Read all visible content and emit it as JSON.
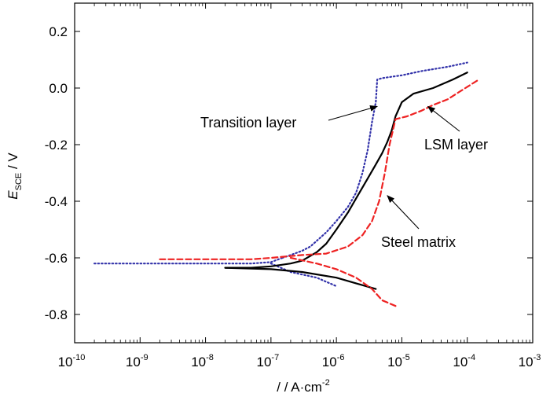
{
  "chart_data": {
    "type": "line",
    "x_scale": "log",
    "xlim": [
      1e-10,
      0.001
    ],
    "ylim": [
      -0.9,
      0.3
    ],
    "x_ticks": [
      {
        "base": "10",
        "exp": "-10"
      },
      {
        "base": "10",
        "exp": "-9"
      },
      {
        "base": "10",
        "exp": "-8"
      },
      {
        "base": "10",
        "exp": "-7"
      },
      {
        "base": "10",
        "exp": "-6"
      },
      {
        "base": "10",
        "exp": "-5"
      },
      {
        "base": "10",
        "exp": "-4"
      },
      {
        "base": "10",
        "exp": "-3"
      }
    ],
    "y_ticks": [
      "0.2",
      "0.0",
      "-0.2",
      "-0.4",
      "-0.6",
      "-0.8"
    ],
    "xlabel": {
      "main": "/ / A·cm",
      "sup": "-2"
    },
    "ylabel": {
      "main": "E",
      "sub": "SCE",
      "rest": " / V"
    },
    "grid": false,
    "series": [
      {
        "name": "Transition layer",
        "color": "#3333aa",
        "style": "dotted",
        "points": [
          [
            1.5e-07,
            -0.6
          ],
          [
            2e-07,
            -0.59
          ],
          [
            3e-07,
            -0.575
          ],
          [
            4e-07,
            -0.56
          ],
          [
            5e-07,
            -0.54
          ],
          [
            7e-07,
            -0.51
          ],
          [
            1e-06,
            -0.47
          ],
          [
            1.5e-06,
            -0.42
          ],
          [
            2e-06,
            -0.37
          ],
          [
            2.5e-06,
            -0.3
          ],
          [
            3e-06,
            -0.22
          ],
          [
            3.5e-06,
            -0.12
          ],
          [
            4e-06,
            -0.05
          ],
          [
            4.2e-06,
            0.03
          ],
          [
            5e-06,
            0.035
          ],
          [
            7e-06,
            0.04
          ],
          [
            1e-05,
            0.045
          ],
          [
            2e-05,
            0.06
          ],
          [
            5e-05,
            0.075
          ],
          [
            0.0001,
            0.09
          ]
        ],
        "cathodic": [
          [
            2e-10,
            -0.62
          ],
          [
            1e-09,
            -0.62
          ],
          [
            1e-08,
            -0.62
          ],
          [
            5e-08,
            -0.62
          ],
          [
            1e-07,
            -0.615
          ],
          [
            1.5e-07,
            -0.6
          ]
        ],
        "cathodic_low": [
          [
            1e-07,
            -0.62
          ],
          [
            2e-07,
            -0.65
          ],
          [
            5e-07,
            -0.67
          ],
          [
            1e-06,
            -0.7
          ]
        ]
      },
      {
        "name": "Steel matrix",
        "color": "#000000",
        "style": "solid",
        "points": [
          [
            2e-08,
            -0.635
          ],
          [
            5e-08,
            -0.635
          ],
          [
            1e-07,
            -0.63
          ],
          [
            2e-07,
            -0.62
          ],
          [
            3e-07,
            -0.61
          ],
          [
            5e-07,
            -0.58
          ],
          [
            7e-07,
            -0.55
          ],
          [
            1e-06,
            -0.5
          ],
          [
            1.5e-06,
            -0.44
          ],
          [
            2e-06,
            -0.39
          ],
          [
            3e-06,
            -0.32
          ],
          [
            4e-06,
            -0.27
          ],
          [
            5e-06,
            -0.23
          ],
          [
            6e-06,
            -0.19
          ],
          [
            7e-06,
            -0.15
          ],
          [
            8e-06,
            -0.1
          ],
          [
            1e-05,
            -0.05
          ],
          [
            1.5e-05,
            -0.02
          ],
          [
            3e-05,
            0.0
          ],
          [
            6e-05,
            0.03
          ],
          [
            0.0001,
            0.055
          ]
        ],
        "cathodic": [
          [
            2e-08,
            -0.635
          ],
          [
            1e-07,
            -0.64
          ],
          [
            3e-07,
            -0.65
          ],
          [
            1e-06,
            -0.67
          ],
          [
            2e-06,
            -0.69
          ],
          [
            4e-06,
            -0.71
          ]
        ]
      },
      {
        "name": "LSM layer",
        "color": "#ee2222",
        "style": "dashed",
        "points": [
          [
            2e-09,
            -0.605
          ],
          [
            1e-08,
            -0.605
          ],
          [
            5e-08,
            -0.605
          ],
          [
            1e-07,
            -0.6
          ],
          [
            3e-07,
            -0.59
          ],
          [
            7e-07,
            -0.585
          ],
          [
            1.5e-06,
            -0.56
          ],
          [
            2.5e-06,
            -0.52
          ],
          [
            3.5e-06,
            -0.47
          ],
          [
            4.5e-06,
            -0.4
          ],
          [
            5.5e-06,
            -0.3
          ],
          [
            6.5e-06,
            -0.2
          ],
          [
            8e-06,
            -0.11
          ],
          [
            1.2e-05,
            -0.1
          ],
          [
            2e-05,
            -0.08
          ],
          [
            3e-05,
            -0.06
          ],
          [
            5e-05,
            -0.04
          ],
          [
            8e-05,
            -0.01
          ],
          [
            0.00015,
            0.03
          ]
        ],
        "cathodic": [
          [
            2e-07,
            -0.6
          ],
          [
            5e-07,
            -0.62
          ],
          [
            1e-06,
            -0.64
          ],
          [
            2e-06,
            -0.67
          ],
          [
            3.5e-06,
            -0.71
          ],
          [
            5e-06,
            -0.75
          ],
          [
            8e-06,
            -0.77
          ]
        ]
      }
    ],
    "annotations": [
      {
        "text": "Transition layer",
        "arrow_to": [
          4.2e-06,
          -0.065
        ]
      },
      {
        "text": "LSM layer",
        "arrow_to": [
          2.5e-05,
          -0.065
        ]
      },
      {
        "text": "Steel matrix",
        "arrow_to": [
          6e-06,
          -0.38
        ]
      }
    ]
  }
}
